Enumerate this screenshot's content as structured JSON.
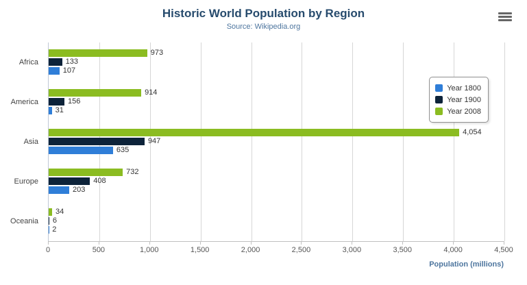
{
  "chart_data": {
    "type": "bar",
    "title": "Historic World Population by Region",
    "subtitle": "Source: Wikipedia.org",
    "categories": [
      "Africa",
      "America",
      "Asia",
      "Europe",
      "Oceania"
    ],
    "series": [
      {
        "name": "Year 2008",
        "color": "#8bbc21",
        "values": [
          973,
          914,
          4054,
          732,
          34
        ]
      },
      {
        "name": "Year 1900",
        "color": "#0d233a",
        "values": [
          133,
          156,
          947,
          408,
          6
        ]
      },
      {
        "name": "Year 1800",
        "color": "#2f7ed8",
        "values": [
          107,
          31,
          635,
          203,
          2
        ]
      }
    ],
    "legend": {
      "position": "right",
      "items": [
        {
          "label": "Year 1800",
          "color": "#2f7ed8"
        },
        {
          "label": "Year 1900",
          "color": "#0d233a"
        },
        {
          "label": "Year 2008",
          "color": "#8bbc21"
        }
      ]
    },
    "xlabel": "Population (millions)",
    "xlim": [
      0,
      4500
    ],
    "tick_values": [
      0,
      500,
      1000,
      1500,
      2000,
      2500,
      3000,
      3500,
      4000,
      4500
    ],
    "x_tick_labels": [
      "0",
      "500",
      "1,000",
      "1,500",
      "2,000",
      "2,500",
      "3,000",
      "3,500",
      "4,000",
      "4,500"
    ],
    "grid": true
  },
  "icons": {
    "menu": "hamburger-menu-icon"
  },
  "colors": {
    "title": "#274b6d",
    "subtitle": "#4d759e",
    "axis_title": "#4d759e"
  }
}
